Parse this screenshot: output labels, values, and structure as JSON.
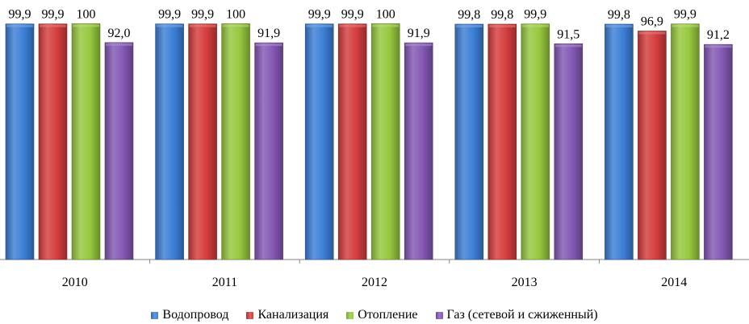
{
  "chart_data": {
    "type": "bar",
    "categories": [
      "2010",
      "2011",
      "2012",
      "2013",
      "2014"
    ],
    "series": [
      {
        "name": "Водопровод",
        "color": "#3c7fd6",
        "values": [
          99.9,
          99.9,
          99.9,
          99.8,
          99.8
        ],
        "labels": [
          "99,9",
          "99,9",
          "99,9",
          "99,8",
          "99,8"
        ]
      },
      {
        "name": "Канализация",
        "color": "#d53d3d",
        "values": [
          99.9,
          99.9,
          99.9,
          99.8,
          96.9
        ],
        "labels": [
          "99,9",
          "99,9",
          "99,9",
          "99,8",
          "96,9"
        ]
      },
      {
        "name": "Отопление",
        "color": "#96c83e",
        "values": [
          100,
          100,
          100,
          99.9,
          99.9
        ],
        "labels": [
          "100",
          "100",
          "100",
          "99,9",
          "99,9"
        ]
      },
      {
        "name": "Газ (сетевой и сжиженный)",
        "color": "#8458b4",
        "values": [
          92.0,
          91.9,
          91.9,
          91.5,
          91.2
        ],
        "labels": [
          "92,0",
          "91,9",
          "91,9",
          "91,5",
          "91,2"
        ]
      }
    ],
    "xlabel": "",
    "ylabel": "",
    "grid": false,
    "legend_position": "bottom"
  }
}
